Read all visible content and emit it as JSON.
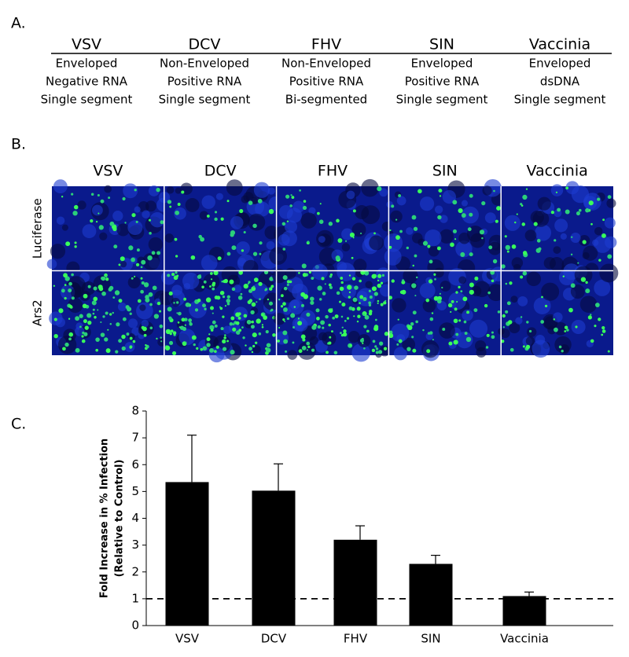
{
  "panels": [
    "A.",
    "B.",
    "C."
  ],
  "table": {
    "columns": [
      "VSV",
      "DCV",
      "FHV",
      "SIN",
      "Vaccinia"
    ],
    "rows": [
      [
        "Enveloped",
        "Non-Enveloped",
        "Non-Enveloped",
        "Enveloped",
        "Enveloped"
      ],
      [
        "Negative RNA",
        "Positive RNA",
        "Positive RNA",
        "Positive RNA",
        "dsDNA"
      ],
      [
        "Single segment",
        "Single segment",
        "Bi-segmented",
        "Single segment",
        "Single segment"
      ]
    ]
  },
  "images": {
    "columns": [
      "VSV",
      "DCV",
      "FHV",
      "SIN",
      "Vaccinia"
    ],
    "rows": [
      "Luciferase",
      "Ars2"
    ]
  },
  "chart_data": {
    "type": "bar",
    "categories": [
      "VSV",
      "DCV",
      "FHV",
      "SIN",
      "Vaccinia"
    ],
    "values": [
      5.35,
      5.03,
      3.2,
      2.3,
      1.1
    ],
    "errors": [
      1.75,
      1.0,
      0.52,
      0.32,
      0.15
    ],
    "color": "#000000",
    "ylim": [
      0,
      8
    ],
    "yticks": [
      0,
      1,
      2,
      3,
      4,
      5,
      6,
      7,
      8
    ],
    "ylabel": [
      "Fold Increase in % Infection",
      "(Relative to Control)"
    ],
    "reference_line": 1
  }
}
